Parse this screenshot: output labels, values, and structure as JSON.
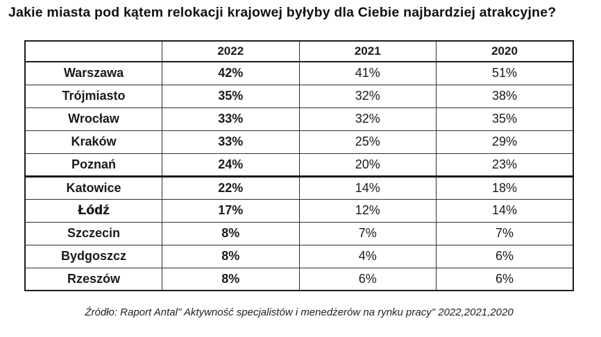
{
  "title": "Jakie miasta pod kątem relokacji krajowej byłyby dla Ciebie najbardziej atrakcyjne?",
  "table": {
    "columns": [
      "",
      "2022",
      "2021",
      "2020"
    ],
    "rows": [
      {
        "city": "Warszawa",
        "v2022": "42%",
        "v2021": "41%",
        "v2020": "51%"
      },
      {
        "city": "Trójmiasto",
        "v2022": "35%",
        "v2021": "32%",
        "v2020": "38%"
      },
      {
        "city": "Wrocław",
        "v2022": "33%",
        "v2021": "32%",
        "v2020": "35%"
      },
      {
        "city": "Kraków",
        "v2022": "33%",
        "v2021": "25%",
        "v2020": "29%"
      },
      {
        "city": "Poznań",
        "v2022": "24%",
        "v2021": "20%",
        "v2020": "23%"
      },
      {
        "city": "Katowice",
        "v2022": "22%",
        "v2021": "14%",
        "v2020": "18%"
      },
      {
        "city": "Łódź",
        "v2022": "17%",
        "v2021": "12%",
        "v2020": "14%"
      },
      {
        "city": "Szczecin",
        "v2022": "8%",
        "v2021": "7%",
        "v2020": "7%"
      },
      {
        "city": "Bydgoszcz",
        "v2022": "8%",
        "v2021": "4%",
        "v2020": "6%"
      },
      {
        "city": "Rzeszów",
        "v2022": "8%",
        "v2021": "6%",
        "v2020": "6%"
      }
    ]
  },
  "source": "Źródło: Raport Antal\" Aktywność specjalistów i menedżerów na rynku pracy\" 2022,2021,2020",
  "colors": {
    "background": "#ffffff",
    "text": "#1a1a1a",
    "border": "#2e2e2e",
    "outer_border": "#1c1c1c"
  },
  "chart_data": {
    "type": "table",
    "title": "Jakie miasta pod kątem relokacji krajowej byłyby dla Ciebie najbardziej atrakcyjne?",
    "categories": [
      "Warszawa",
      "Trójmiasto",
      "Wrocław",
      "Kraków",
      "Poznań",
      "Katowice",
      "Łódź",
      "Szczecin",
      "Bydgoszcz",
      "Rzeszów"
    ],
    "series": [
      {
        "name": "2022",
        "values": [
          42,
          35,
          33,
          33,
          24,
          22,
          17,
          8,
          8,
          8
        ]
      },
      {
        "name": "2021",
        "values": [
          41,
          32,
          32,
          25,
          20,
          14,
          12,
          7,
          4,
          6
        ]
      },
      {
        "name": "2020",
        "values": [
          51,
          38,
          35,
          29,
          23,
          18,
          14,
          7,
          6,
          6
        ]
      }
    ],
    "unit": "%",
    "source": "Źródło: Raport Antal\" Aktywność specjalistów i menedżerów na rynku pracy\" 2022,2021,2020",
    "layout": {
      "emphasized_column": "2022",
      "thick_divider_above_row": "Katowice"
    }
  }
}
